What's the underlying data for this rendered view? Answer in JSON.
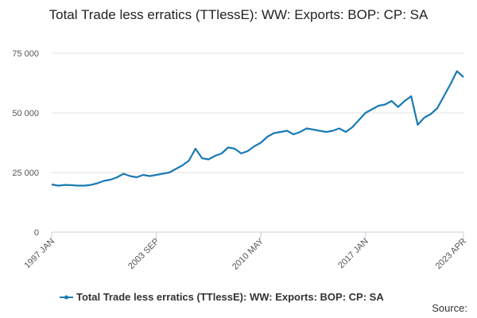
{
  "chart_data": {
    "type": "line",
    "title": "Total Trade less erratics (TTlessE): WW: Exports: BOP: CP: SA",
    "source": "Source:",
    "categories": [
      "1997 JAN",
      null,
      null,
      null,
      null,
      null,
      null,
      null,
      null,
      null,
      null,
      null,
      null,
      null,
      null,
      null,
      "2003 SEP",
      null,
      null,
      null,
      null,
      null,
      null,
      null,
      null,
      null,
      null,
      null,
      null,
      null,
      null,
      null,
      "2010 MAY",
      null,
      null,
      null,
      null,
      null,
      null,
      null,
      null,
      null,
      null,
      null,
      null,
      null,
      null,
      null,
      "2017 JAN",
      null,
      null,
      null,
      null,
      null,
      null,
      null,
      null,
      null,
      null,
      null,
      null,
      null,
      null,
      "2023 APR"
    ],
    "series": [
      {
        "name": "Total Trade less erratics (TTlessE): WW: Exports: BOP: CP: SA",
        "color": "#1a7ab5",
        "values": [
          20000,
          19500,
          19800,
          19700,
          19500,
          19500,
          19800,
          20500,
          21500,
          22000,
          23000,
          24500,
          23500,
          23000,
          24000,
          23500,
          24000,
          24500,
          25000,
          26500,
          28000,
          30000,
          35000,
          31000,
          30500,
          32000,
          33000,
          35500,
          35000,
          33000,
          34000,
          36000,
          37500,
          40000,
          41500,
          42000,
          42500,
          41000,
          42000,
          43500,
          43000,
          42500,
          42000,
          42500,
          43500,
          42000,
          44000,
          47000,
          50000,
          51500,
          53000,
          53500,
          55000,
          52500,
          55000,
          57000,
          45000,
          48000,
          49500,
          52000,
          57000,
          62000,
          67500,
          65000
        ]
      }
    ],
    "ylim": [
      0,
      75000
    ],
    "yticks": [
      0,
      {
        "value": 25000,
        "label": "25 000"
      },
      {
        "value": 50000,
        "label": "50 000"
      },
      {
        "value": 75000,
        "label": "75 000"
      }
    ],
    "grid": true
  }
}
